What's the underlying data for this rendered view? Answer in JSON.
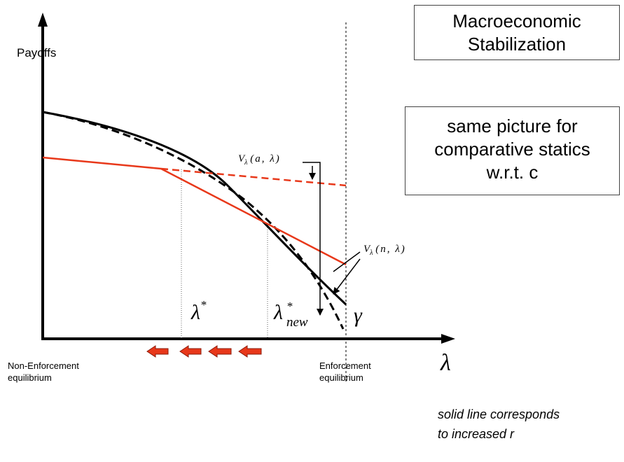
{
  "title_box": {
    "line1": "Macroeconomic",
    "line2": "Stabilization"
  },
  "note_box": {
    "line1": "same picture for",
    "line2": "comparative statics",
    "line3": "w.r.t. c"
  },
  "axes": {
    "y_label": "Payoffs",
    "x_label": "λ",
    "left_end_line1": "Non-Enforcement",
    "left_end_line2": "equilibrium",
    "right_end_line1": "Enforcement",
    "right_end_line2": "equilibrium"
  },
  "labels": {
    "lambda_star": "λ",
    "lambda_star_sup": "*",
    "lambda_new": "λ",
    "lambda_new_sup": "*",
    "lambda_new_sub": "new",
    "gamma": "γ",
    "v_a": "V",
    "v_a_sub": "λ",
    "v_a_args": "(a, λ)",
    "v_n": "V",
    "v_n_sub": "λ",
    "v_n_args": "(n, λ)"
  },
  "bottom_note": {
    "line1": "solid line corresponds",
    "line2": "to increased r"
  },
  "colors": {
    "red": "#e8381a",
    "black": "#000000"
  }
}
